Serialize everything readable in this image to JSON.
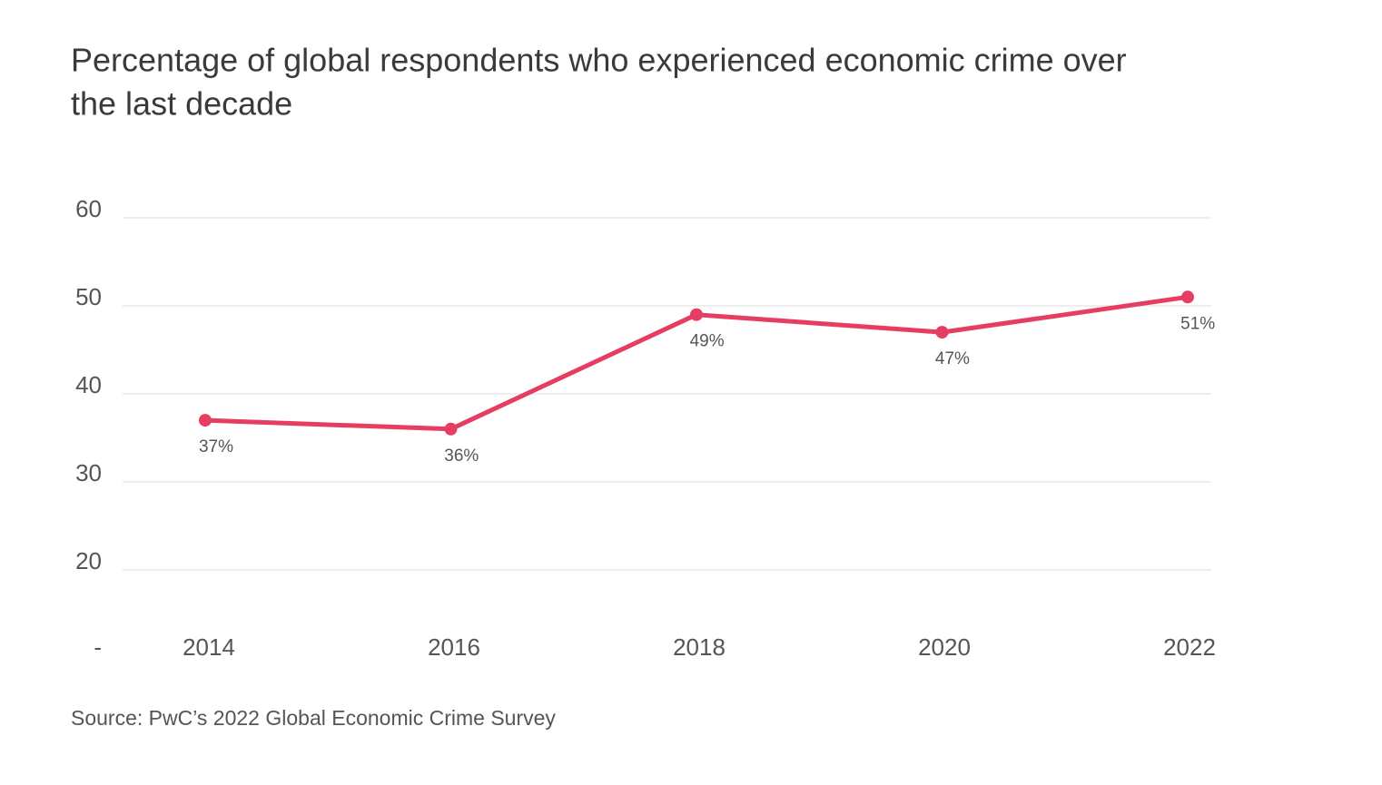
{
  "chart_data": {
    "type": "line",
    "title": "Percentage of global respondents who experienced economic crime over",
    "subtitle": "the last decade",
    "source": "Source: PwC’s 2022 Global Economic Crime Survey",
    "categories": [
      "2014",
      "2016",
      "2018",
      "2020",
      "2022"
    ],
    "series": [
      {
        "name": "Economic crime",
        "color": "#e63e62",
        "values": [
          37,
          36,
          49,
          47,
          51
        ],
        "value_labels": [
          "37%",
          "36%",
          "49%",
          "47%",
          "51%"
        ]
      }
    ],
    "ylim": [
      10,
      60
    ],
    "yticks": [
      {
        "value": 10,
        "label": "-"
      },
      20,
      30,
      40,
      50,
      60
    ],
    "grid": true
  }
}
